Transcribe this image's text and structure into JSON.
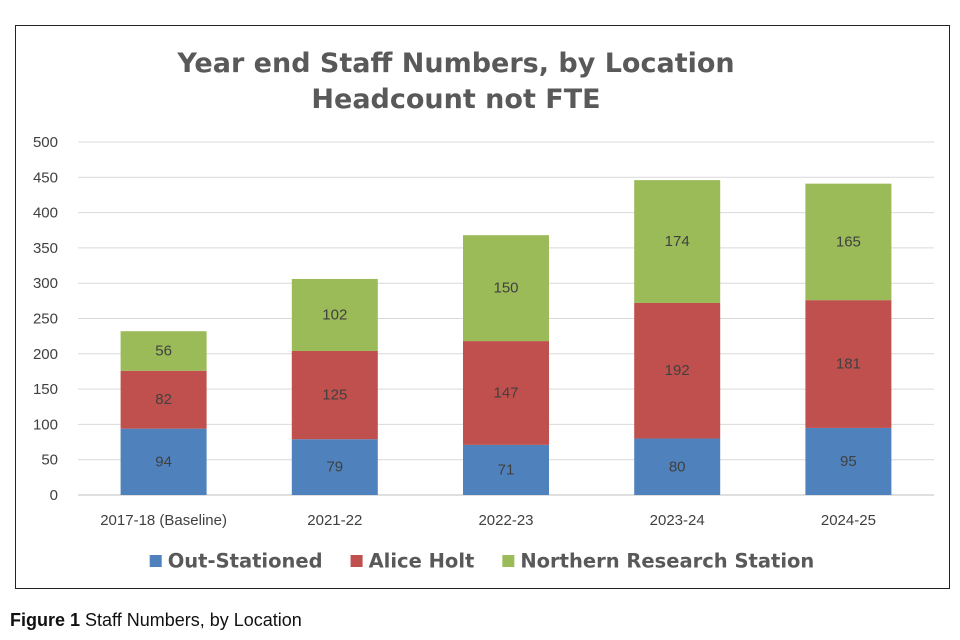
{
  "caption": {
    "label": "Figure 1",
    "text": "Staff Numbers, by Location"
  },
  "chart_data": {
    "type": "bar",
    "stacked": true,
    "title": [
      "Year end Staff Numbers, by Location",
      "Headcount not FTE"
    ],
    "categories": [
      "2017-18 (Baseline)",
      "2021-22",
      "2022-23",
      "2023-24",
      "2024-25"
    ],
    "series": [
      {
        "name": "Out-Stationed",
        "color": "#4f81bd",
        "values": [
          94,
          79,
          71,
          80,
          95
        ]
      },
      {
        "name": "Alice Holt",
        "color": "#c0504d",
        "values": [
          82,
          125,
          147,
          192,
          181
        ]
      },
      {
        "name": "Northern Research Station",
        "color": "#9bbb59",
        "values": [
          56,
          102,
          150,
          174,
          165
        ]
      }
    ],
    "ylim": [
      0,
      500
    ],
    "yticks": [
      0,
      50,
      100,
      150,
      200,
      250,
      300,
      350,
      400,
      450,
      500
    ],
    "grid": true,
    "legend": "bottom",
    "data_labels": true
  }
}
